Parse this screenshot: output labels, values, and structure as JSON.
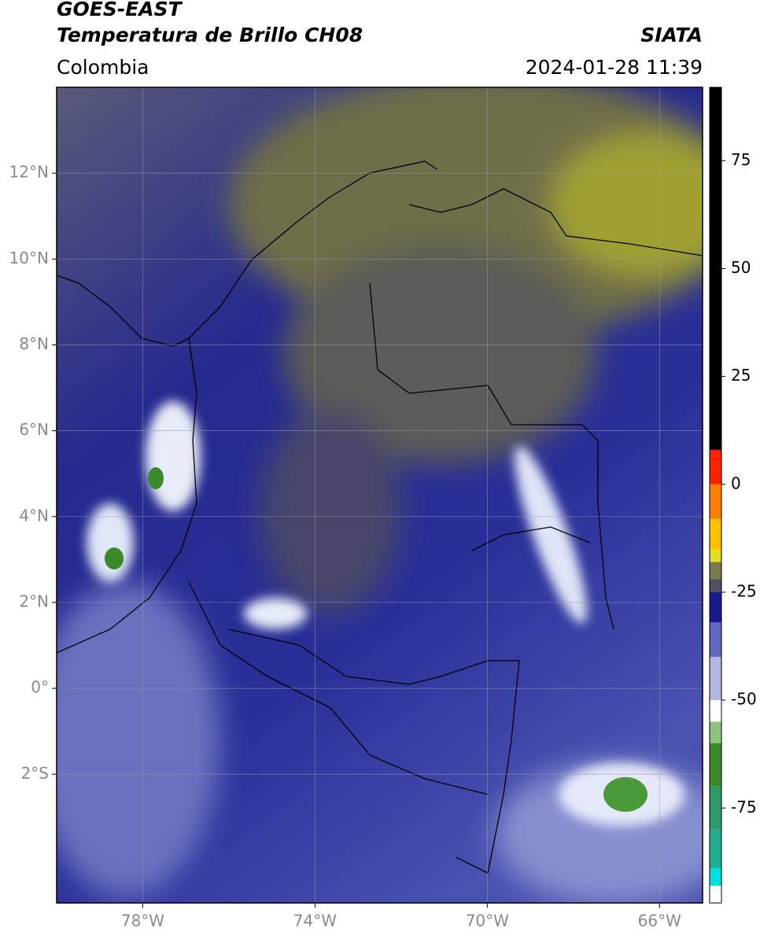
{
  "header": {
    "satellite": "GOES-EAST",
    "product": "Temperatura de Brillo CH08",
    "agency": "SIATA",
    "region": "Colombia",
    "datetime": "2024-01-28 11:39"
  },
  "map": {
    "xlim": [
      -80,
      -65
    ],
    "ylim": [
      -5,
      14
    ],
    "grid": true,
    "xticks": [
      {
        "value": -78,
        "label": "78°W"
      },
      {
        "value": -74,
        "label": "74°W"
      },
      {
        "value": -70,
        "label": "70°W"
      },
      {
        "value": -66,
        "label": "66°W"
      }
    ],
    "yticks": [
      {
        "value": 12,
        "label": "12°N"
      },
      {
        "value": 10,
        "label": "10°N"
      },
      {
        "value": 8,
        "label": "8°N"
      },
      {
        "value": 6,
        "label": "6°N"
      },
      {
        "value": 4,
        "label": "4°N"
      },
      {
        "value": 2,
        "label": "2°N"
      },
      {
        "value": 0,
        "label": "0°"
      },
      {
        "value": -2,
        "label": "2°S"
      }
    ]
  },
  "colorbar": {
    "lim": [
      -97,
      92
    ],
    "ticks": [
      75,
      50,
      25,
      0,
      -25,
      -50,
      -75
    ],
    "segments": [
      {
        "from": -97,
        "to": -93,
        "color": "#ffffff"
      },
      {
        "from": -93,
        "to": -89,
        "color": "#00e0e0"
      },
      {
        "from": -89,
        "to": -80,
        "color": "#20b090"
      },
      {
        "from": -80,
        "to": -70,
        "color": "#2e9a6a"
      },
      {
        "from": -70,
        "to": -60,
        "color": "#3a8a2a"
      },
      {
        "from": -60,
        "to": -55,
        "color": "#90c080"
      },
      {
        "from": -55,
        "to": -50,
        "color": "#ffffff"
      },
      {
        "from": -50,
        "to": -40,
        "color": "#b0b8e0"
      },
      {
        "from": -40,
        "to": -32,
        "color": "#6068c0"
      },
      {
        "from": -32,
        "to": -25,
        "color": "#1a1a90"
      },
      {
        "from": -25,
        "to": -22,
        "color": "#505060"
      },
      {
        "from": -22,
        "to": -18,
        "color": "#7a7a50"
      },
      {
        "from": -18,
        "to": -15,
        "color": "#e0e020"
      },
      {
        "from": -15,
        "to": -8,
        "color": "#ffc000"
      },
      {
        "from": -8,
        "to": 0,
        "color": "#ff8000"
      },
      {
        "from": 0,
        "to": 8,
        "color": "#ff2000"
      },
      {
        "from": 8,
        "to": 92,
        "color": "#000000"
      }
    ]
  }
}
